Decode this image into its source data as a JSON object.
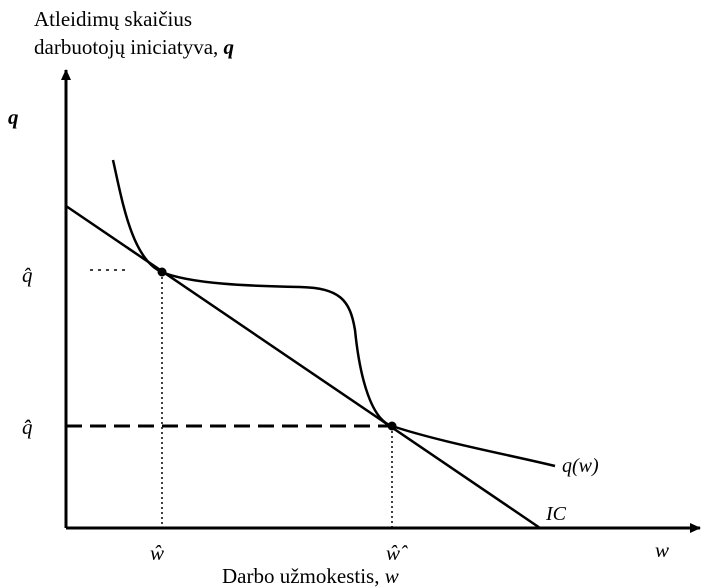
{
  "y_axis": {
    "title_line1": "Atleidimų skaičius",
    "title_line2_prefix": "darbuotojų iniciatyva, ",
    "title_line2_var": "q",
    "symbol": "q"
  },
  "x_axis": {
    "title_prefix": "Darbo užmokestis, ",
    "title_var": "w",
    "symbol": "w"
  },
  "ticks": {
    "q_hat": "q̂",
    "q_double_hat": "q̂̂",
    "w_hat": "ŵ",
    "w_double_hat": "ŵ̂"
  },
  "curves": {
    "qw_label": "q(w)",
    "ic_label": "IC"
  },
  "colors": {
    "ink": "#000000",
    "background": "#ffffff"
  }
}
